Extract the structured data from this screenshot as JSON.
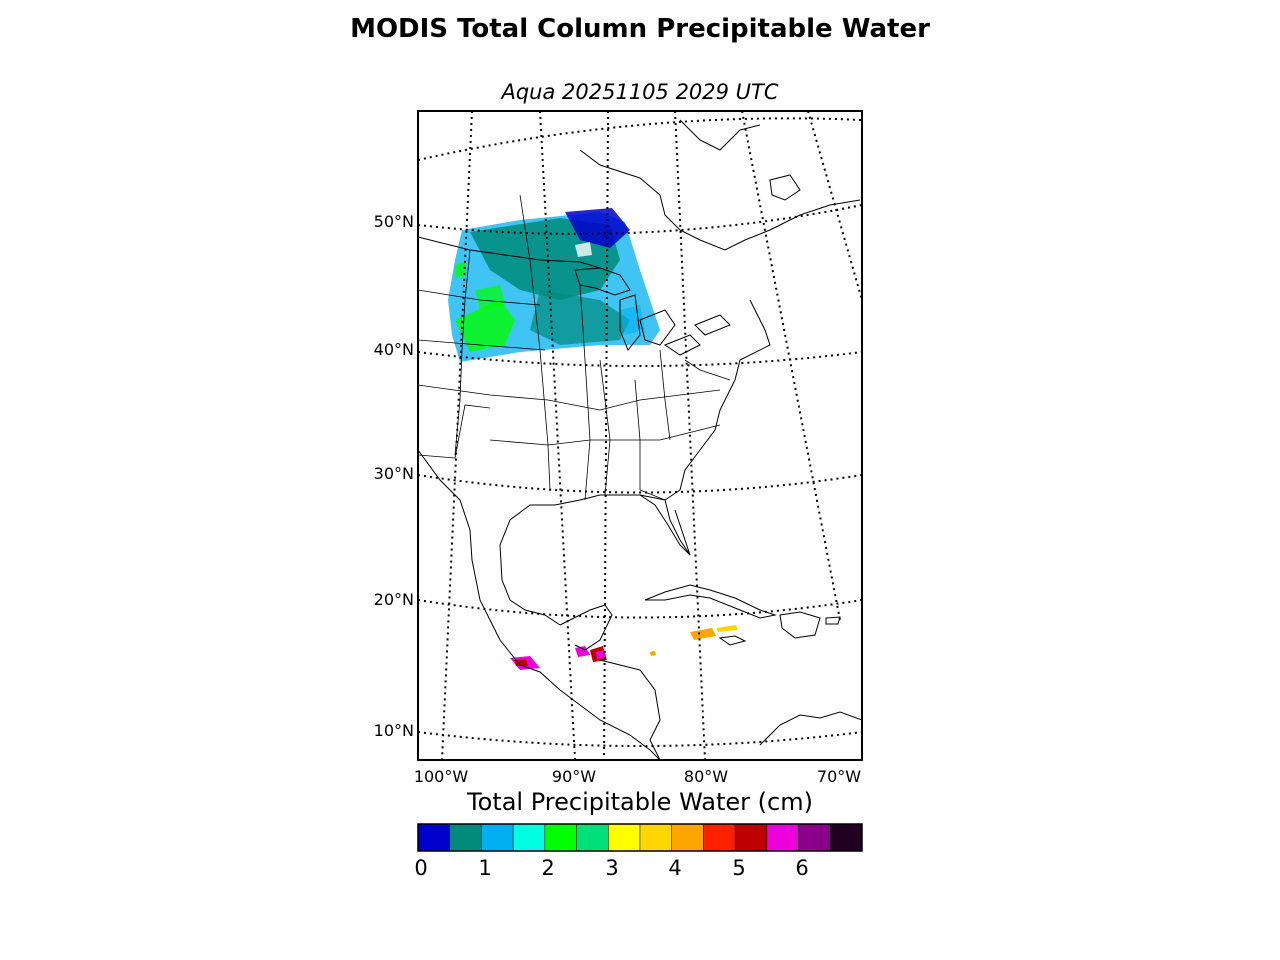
{
  "title": "MODIS Total Column Precipitable Water",
  "subtitle": "Aqua 20251105 2029 UTC",
  "latitude_labels": [
    "50°N",
    "40°N",
    "30°N",
    "20°N",
    "10°N"
  ],
  "longitude_labels": [
    "100°W",
    "90°W",
    "80°W",
    "70°W"
  ],
  "colorbar": {
    "title": "Total Precipitable Water (cm)",
    "ticks": [
      "0",
      "1",
      "2",
      "3",
      "4",
      "5",
      "6"
    ],
    "colors": [
      "#0000cc",
      "#008b7a",
      "#00b0f0",
      "#00ffe0",
      "#00ff00",
      "#00e07a",
      "#ffff00",
      "#ffd700",
      "#ffa500",
      "#ff2000",
      "#c00000",
      "#ee00dd",
      "#8b008b",
      "#200020"
    ]
  }
}
